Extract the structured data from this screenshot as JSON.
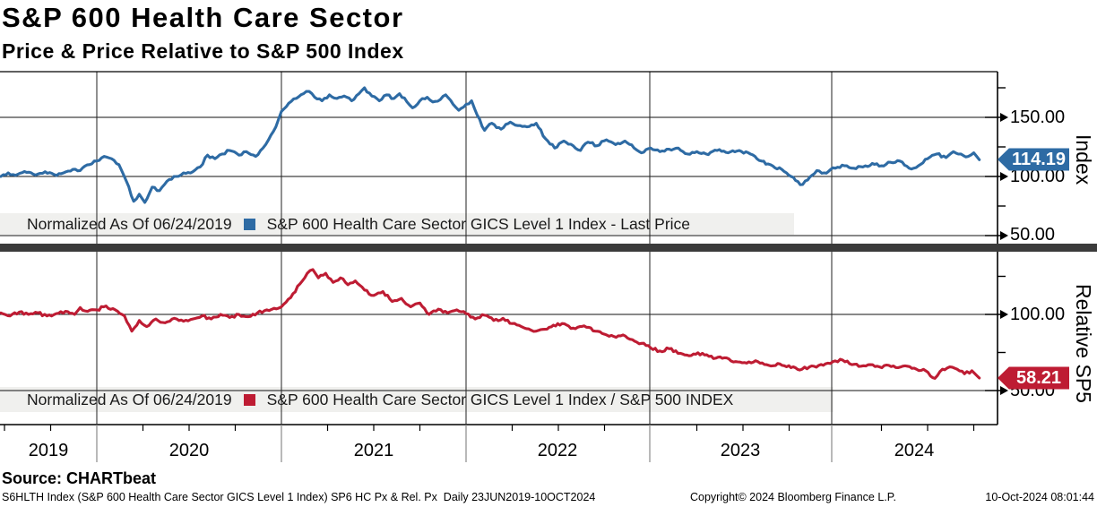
{
  "header": {
    "title": "S&P 600 Health Care Sector",
    "subtitle": "Price & Price Relative to S&P 500 Index"
  },
  "panels": [
    {
      "name": "price",
      "axis_label": "Index",
      "legend": {
        "normalized": "Normalized As Of 06/24/2019",
        "series_label": "S&P 600 Health Care Sector GICS Level 1 Index - Last Price"
      },
      "last_value": "114.19",
      "color": "#2e6ba4",
      "yticks": [
        {
          "label": "150.00",
          "value": 150
        },
        {
          "label": "100.00",
          "value": 100
        },
        {
          "label": "50.00",
          "value": 50
        }
      ],
      "yticks_minor": [
        175,
        125,
        75
      ]
    },
    {
      "name": "relative",
      "axis_label": "Relative SP5",
      "legend": {
        "normalized": "Normalized As Of 06/24/2019",
        "series_label": "S&P 600 Health Care Sector GICS Level 1 Index / S&P 500 INDEX"
      },
      "last_value": "58.21",
      "color": "#be1c33",
      "yticks": [
        {
          "label": "100.00",
          "value": 100
        },
        {
          "label": "50.00",
          "value": 50
        }
      ],
      "yticks_minor": [
        125,
        75
      ]
    }
  ],
  "xaxis": {
    "years": [
      "2019",
      "2020",
      "2021",
      "2022",
      "2023",
      "2024"
    ]
  },
  "source": "Source: CHARTbeat",
  "footer": {
    "left": "S6HLTH Index (S&P 600 Health Care Sector GICS Level 1 Index) SP6 HC Px & Rel. Px  Daily 23JUN2019-10OCT2024",
    "center": "Copyright© 2024 Bloomberg Finance L.P.",
    "right": "10-Oct-2024 08:01:44"
  },
  "chart_data": [
    {
      "type": "line",
      "title": "S&P 600 Health Care Sector GICS Level 1 Index - Last Price",
      "normalized_as_of": "06/24/2019",
      "legend_position": "bottom-left",
      "grid": true,
      "color": "#2e6ba4",
      "x_range": [
        2019.48,
        2024.78
      ],
      "ylim": [
        45,
        190
      ],
      "yticks": [
        150,
        100,
        50
      ],
      "last": 114.19,
      "x": [
        2019.48,
        2019.52,
        2019.56,
        2019.62,
        2019.68,
        2019.72,
        2019.77,
        2019.82,
        2019.87,
        2019.91,
        2019.96,
        2020.0,
        2020.04,
        2020.08,
        2020.12,
        2020.16,
        2020.2,
        2020.23,
        2020.26,
        2020.3,
        2020.34,
        2020.38,
        2020.43,
        2020.47,
        2020.52,
        2020.56,
        2020.6,
        2020.64,
        2020.68,
        2020.72,
        2020.77,
        2020.81,
        2020.86,
        2020.9,
        2020.93,
        2020.97,
        2021.0,
        2021.04,
        2021.08,
        2021.12,
        2021.15,
        2021.18,
        2021.22,
        2021.26,
        2021.3,
        2021.34,
        2021.38,
        2021.42,
        2021.45,
        2021.49,
        2021.53,
        2021.57,
        2021.61,
        2021.64,
        2021.68,
        2021.71,
        2021.75,
        2021.79,
        2021.82,
        2021.86,
        2021.89,
        2021.93,
        2021.96,
        2022.0,
        2022.03,
        2022.06,
        2022.1,
        2022.14,
        2022.19,
        2022.24,
        2022.28,
        2022.33,
        2022.38,
        2022.43,
        2022.48,
        2022.53,
        2022.58,
        2022.62,
        2022.66,
        2022.71,
        2022.76,
        2022.81,
        2022.86,
        2022.91,
        2022.95,
        2023.0,
        2023.05,
        2023.1,
        2023.15,
        2023.2,
        2023.25,
        2023.3,
        2023.36,
        2023.42,
        2023.48,
        2023.54,
        2023.6,
        2023.66,
        2023.71,
        2023.76,
        2023.81,
        2023.85,
        2023.9,
        2023.94,
        2024.0,
        2024.05,
        2024.1,
        2024.15,
        2024.2,
        2024.25,
        2024.3,
        2024.35,
        2024.4,
        2024.45,
        2024.5,
        2024.55,
        2024.6,
        2024.64,
        2024.68,
        2024.72,
        2024.75,
        2024.78
      ],
      "values": [
        100,
        103,
        101,
        103.5,
        102,
        104,
        101.5,
        103,
        106,
        105,
        110,
        113,
        117,
        115,
        110,
        96,
        79,
        85,
        78,
        91,
        88,
        96,
        100,
        103,
        104,
        108,
        118,
        115,
        119,
        122,
        118,
        121,
        117,
        124,
        131,
        142,
        155,
        162,
        166,
        170,
        172,
        167,
        164,
        169,
        166,
        168,
        164,
        170,
        175,
        168,
        164,
        169,
        166,
        170,
        163,
        158,
        164,
        167,
        163,
        165,
        169,
        161,
        156,
        161,
        164,
        152,
        139,
        145,
        140,
        146,
        143,
        142,
        145,
        132,
        124,
        130,
        126,
        122,
        129,
        126,
        131,
        127,
        130,
        124,
        120,
        124,
        121,
        123,
        124,
        119,
        121,
        119,
        122,
        120,
        122,
        119,
        113,
        109,
        106,
        100,
        93,
        97,
        105,
        103,
        107,
        109,
        107,
        108,
        111,
        109,
        112,
        113,
        107,
        109,
        115,
        119,
        116,
        121,
        119,
        117,
        120,
        114.19
      ]
    },
    {
      "type": "line",
      "title": "S&P 600 Health Care Sector GICS Level 1 Index / S&P 500 INDEX",
      "normalized_as_of": "06/24/2019",
      "legend_position": "bottom-left",
      "grid": true,
      "color": "#be1c33",
      "x_range": [
        2019.48,
        2024.78
      ],
      "ylim": [
        28,
        135
      ],
      "yticks": [
        100,
        50
      ],
      "last": 58.21,
      "x": [
        2019.48,
        2019.53,
        2019.58,
        2019.63,
        2019.68,
        2019.73,
        2019.78,
        2019.83,
        2019.88,
        2019.91,
        2019.95,
        2020.0,
        2020.05,
        2020.1,
        2020.15,
        2020.19,
        2020.23,
        2020.27,
        2020.32,
        2020.37,
        2020.42,
        2020.47,
        2020.52,
        2020.57,
        2020.62,
        2020.67,
        2020.72,
        2020.77,
        2020.82,
        2020.87,
        2020.92,
        2020.96,
        2021.0,
        2021.05,
        2021.1,
        2021.14,
        2021.17,
        2021.2,
        2021.24,
        2021.28,
        2021.32,
        2021.36,
        2021.4,
        2021.45,
        2021.5,
        2021.55,
        2021.6,
        2021.65,
        2021.7,
        2021.75,
        2021.8,
        2021.85,
        2021.9,
        2021.95,
        2022.0,
        2022.05,
        2022.1,
        2022.15,
        2022.2,
        2022.25,
        2022.3,
        2022.38,
        2022.45,
        2022.52,
        2022.58,
        2022.64,
        2022.7,
        2022.75,
        2022.8,
        2022.85,
        2022.9,
        2022.95,
        2023.0,
        2023.05,
        2023.1,
        2023.16,
        2023.22,
        2023.28,
        2023.34,
        2023.4,
        2023.46,
        2023.52,
        2023.58,
        2023.64,
        2023.7,
        2023.76,
        2023.82,
        2023.86,
        2023.91,
        2023.96,
        2024.0,
        2024.04,
        2024.09,
        2024.14,
        2024.19,
        2024.24,
        2024.29,
        2024.34,
        2024.39,
        2024.44,
        2024.49,
        2024.54,
        2024.58,
        2024.62,
        2024.66,
        2024.7,
        2024.74,
        2024.78
      ],
      "values": [
        101,
        99,
        101.5,
        100,
        101,
        99,
        100.5,
        102,
        100,
        104.5,
        102,
        103,
        105.5,
        103,
        99,
        89,
        96,
        92,
        97,
        94.5,
        97.5,
        95.5,
        97,
        99,
        97,
        100,
        98,
        100,
        98.5,
        101,
        103,
        104,
        105,
        111,
        120,
        127,
        129.5,
        124,
        127,
        121,
        124,
        119.5,
        122,
        116,
        112.5,
        115,
        108.5,
        110.5,
        105,
        107.5,
        100,
        103.5,
        101,
        103,
        100.5,
        97,
        99.5,
        96,
        97.5,
        94,
        92,
        89,
        91.5,
        94,
        91,
        92.5,
        89,
        87,
        85.5,
        86.5,
        83.5,
        81,
        78,
        76,
        77.5,
        74.5,
        73,
        74.5,
        71,
        71.5,
        69,
        68,
        69,
        66.5,
        67.5,
        65,
        64,
        65.5,
        66.5,
        68,
        69.5,
        70,
        67,
        66,
        67,
        65.5,
        66.5,
        65,
        66,
        64,
        63,
        58,
        64,
        65.5,
        64,
        61,
        63,
        58.21
      ]
    }
  ]
}
